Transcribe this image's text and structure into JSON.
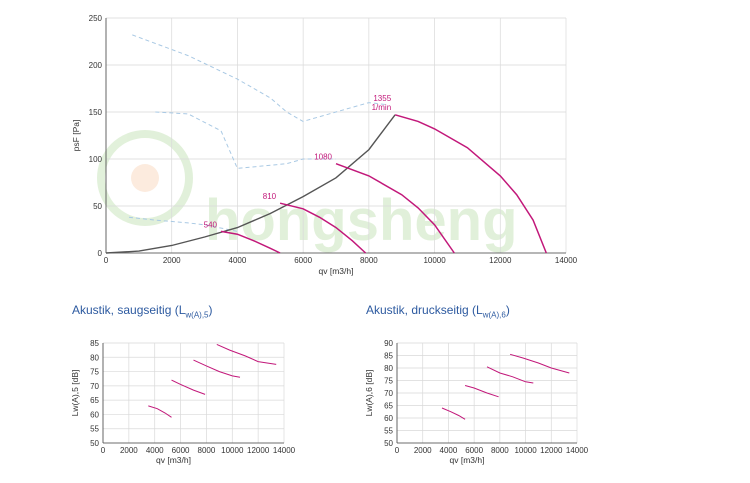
{
  "chart_data": [
    {
      "type": "line",
      "id": "fan-curve",
      "xlabel": "qv [m3/h]",
      "ylabel": "psF [Pa]",
      "xlim": [
        0,
        14000
      ],
      "ylim": [
        0,
        250
      ],
      "xticks": [
        0,
        2000,
        4000,
        6000,
        8000,
        10000,
        12000,
        14000
      ],
      "yticks": [
        0,
        50,
        100,
        150,
        200,
        250
      ],
      "grid": true,
      "watermark": "hongsheng",
      "system_curve": {
        "name": "system",
        "x": [
          0,
          1000,
          2000,
          3000,
          4000,
          5000,
          6000,
          7000,
          8000,
          8800
        ],
        "y": [
          0,
          2,
          8,
          17,
          27,
          42,
          60,
          80,
          110,
          147
        ]
      },
      "series": [
        {
          "name": "540",
          "speed_label": "540",
          "x": [
            3500,
            4000,
            4500,
            5000,
            5300
          ],
          "y": [
            23,
            20,
            13,
            5,
            0
          ]
        },
        {
          "name": "810",
          "speed_label": "810",
          "x": [
            5300,
            6000,
            6500,
            7000,
            7500,
            7900
          ],
          "y": [
            53,
            47,
            38,
            27,
            13,
            0
          ]
        },
        {
          "name": "1080",
          "speed_label": "1080",
          "x": [
            7000,
            8000,
            9000,
            9500,
            10000,
            10600
          ],
          "y": [
            95,
            82,
            62,
            48,
            30,
            0
          ]
        },
        {
          "name": "1355",
          "speed_label": "1355",
          "unit_label": "1/min",
          "x": [
            8800,
            9500,
            10000,
            11000,
            12000,
            12500,
            13000,
            13400
          ],
          "y": [
            147,
            140,
            132,
            112,
            82,
            62,
            35,
            0
          ]
        }
      ],
      "reference_curves": [
        {
          "name": "dashed-upper",
          "x": [
            800,
            2500,
            4000,
            5000,
            5500,
            6000,
            7500,
            8000,
            8500
          ],
          "y": [
            232,
            210,
            185,
            165,
            150,
            140,
            155,
            160,
            158
          ]
        },
        {
          "name": "dashed-middle",
          "x": [
            1500,
            2500,
            3500,
            4000,
            5500,
            6000,
            7000
          ],
          "y": [
            150,
            148,
            130,
            90,
            95,
            100,
            100
          ]
        },
        {
          "name": "dashed-lower",
          "x": [
            700,
            1500,
            2500,
            3000,
            4000
          ],
          "y": [
            38,
            35,
            32,
            30,
            23
          ]
        }
      ]
    },
    {
      "type": "line",
      "id": "acoustic-suction",
      "xlabel": "qv [m3/h]",
      "ylabel": "Lw(A),5 [dB]",
      "xlim": [
        0,
        14000
      ],
      "ylim": [
        50,
        85
      ],
      "xticks": [
        0,
        2000,
        4000,
        6000,
        8000,
        10000,
        12000,
        14000
      ],
      "yticks": [
        50,
        55,
        60,
        65,
        70,
        75,
        80,
        85
      ],
      "grid": true,
      "series": [
        {
          "name": "540",
          "x": [
            3500,
            4200,
            4800,
            5300
          ],
          "y": [
            63,
            62,
            60.5,
            59
          ]
        },
        {
          "name": "810",
          "x": [
            5300,
            6000,
            7000,
            7900
          ],
          "y": [
            72,
            70.5,
            68.5,
            67
          ]
        },
        {
          "name": "1080",
          "x": [
            7000,
            8000,
            9000,
            10000,
            10600
          ],
          "y": [
            79,
            77,
            75,
            73.5,
            73
          ]
        },
        {
          "name": "1355",
          "x": [
            8800,
            9800,
            11000,
            12000,
            13400
          ],
          "y": [
            84.5,
            82.5,
            80.5,
            78.5,
            77.5
          ]
        }
      ]
    },
    {
      "type": "line",
      "id": "acoustic-pressure",
      "xlabel": "qv [m3/h]",
      "ylabel": "Lw(A),6 [dB]",
      "xlim": [
        0,
        14000
      ],
      "ylim": [
        50,
        90
      ],
      "xticks": [
        0,
        2000,
        4000,
        6000,
        8000,
        10000,
        12000,
        14000
      ],
      "yticks": [
        50,
        55,
        60,
        65,
        70,
        75,
        80,
        85,
        90
      ],
      "grid": true,
      "series": [
        {
          "name": "540",
          "x": [
            3500,
            4200,
            4800,
            5300
          ],
          "y": [
            64,
            62.5,
            61,
            59.5
          ]
        },
        {
          "name": "810",
          "x": [
            5300,
            6000,
            7000,
            7900
          ],
          "y": [
            73,
            72,
            70,
            68.5
          ]
        },
        {
          "name": "1080",
          "x": [
            7000,
            8000,
            9000,
            10000,
            10600
          ],
          "y": [
            80.5,
            78,
            76.5,
            74.5,
            74
          ]
        },
        {
          "name": "1355",
          "x": [
            8800,
            9800,
            11000,
            12000,
            13400
          ],
          "y": [
            85.5,
            84,
            82,
            80,
            78
          ]
        }
      ]
    }
  ],
  "sections": {
    "suction": {
      "title_text": "Akustik, saugseitig (L",
      "title_sub": "w(A),5",
      "title_close": ")"
    },
    "pressure": {
      "title_text": "Akustik, druckseitig (L",
      "title_sub": "w(A),6",
      "title_close": ")"
    }
  },
  "colors": {
    "curve": "#c2187a",
    "system": "#555555",
    "dashed": "#a9c9e4",
    "grid": "#d9d9d9",
    "title": "#2d5aa0",
    "watermark": "#7bbf5a"
  }
}
